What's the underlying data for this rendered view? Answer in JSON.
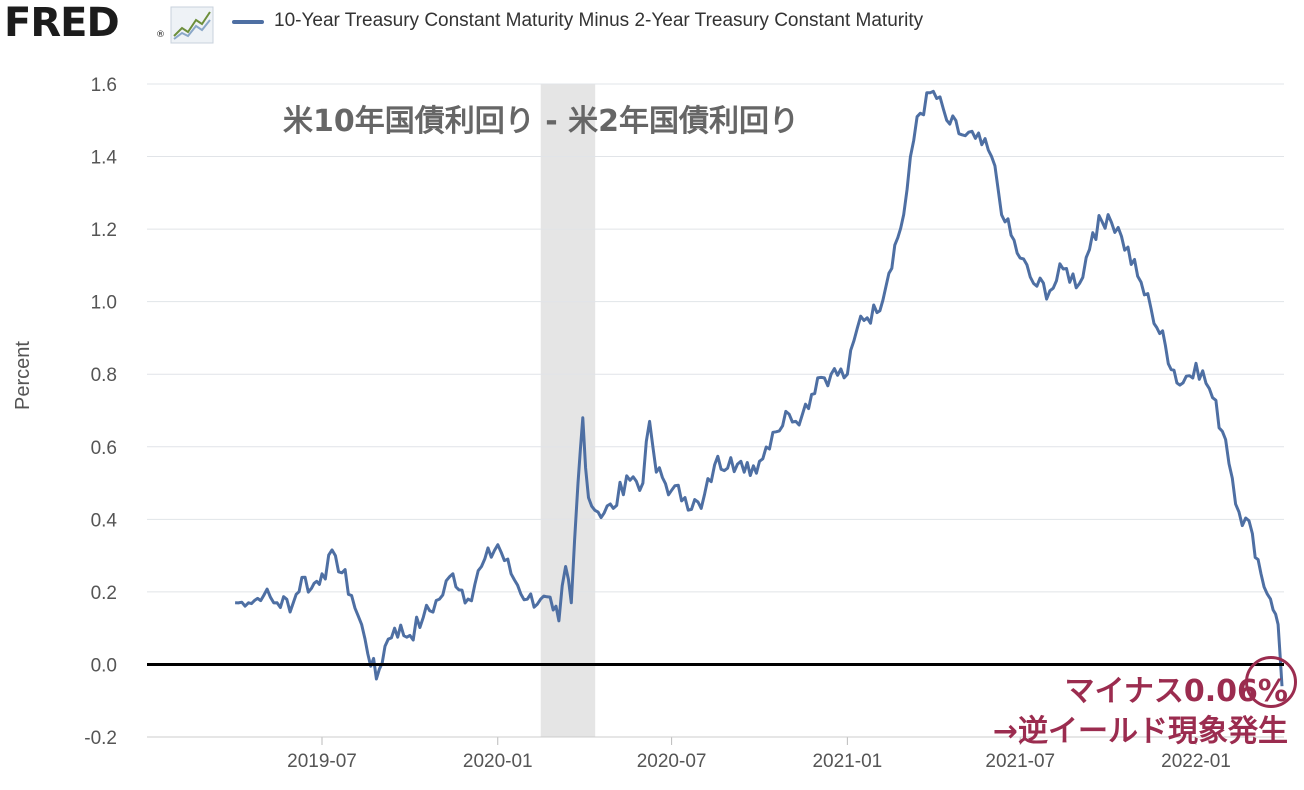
{
  "header": {
    "logo_text": "FRED",
    "logo_reg": "®",
    "legend_label": "10-Year Treasury Constant Maturity Minus 2-Year Treasury Constant Maturity",
    "series_color": "#4e6fa3",
    "logo_icon": "line-chart-icon"
  },
  "annotations": {
    "title_jp": "米10年国債利回り - 米2年国債利回り",
    "callout_line1": "マイナス0.06%",
    "callout_line2": "→逆イールド現象発生",
    "callout_color": "#9b2c4f"
  },
  "chart_data": {
    "type": "line",
    "ylabel": "Percent",
    "ylim": [
      -0.2,
      1.6
    ],
    "yticks": [
      "1.6",
      "1.4",
      "1.2",
      "1.0",
      "0.8",
      "0.6",
      "0.4",
      "0.2",
      "0.0",
      "-0.2"
    ],
    "xticks": [
      "2019-07",
      "2020-01",
      "2020-07",
      "2021-01",
      "2021-07",
      "2022-01"
    ],
    "recession_shading": {
      "start": "2020-02",
      "end": "2020-04",
      "color": "#e5e5e5"
    },
    "zero_line": true,
    "series": [
      {
        "name": "10-Year Treasury Constant Maturity Minus 2-Year Treasury Constant Maturity",
        "color": "#4e6fa3",
        "points": [
          [
            "2019-04-01",
            0.17
          ],
          [
            "2019-04-15",
            0.17
          ],
          [
            "2019-05-01",
            0.19
          ],
          [
            "2019-05-15",
            0.17
          ],
          [
            "2019-06-01",
            0.17
          ],
          [
            "2019-06-10",
            0.24
          ],
          [
            "2019-06-20",
            0.21
          ],
          [
            "2019-07-01",
            0.25
          ],
          [
            "2019-07-15",
            0.3
          ],
          [
            "2019-08-01",
            0.19
          ],
          [
            "2019-08-15",
            0.07
          ],
          [
            "2019-08-27",
            -0.04
          ],
          [
            "2019-09-05",
            0.05
          ],
          [
            "2019-09-15",
            0.1
          ],
          [
            "2019-10-01",
            0.08
          ],
          [
            "2019-10-15",
            0.13
          ],
          [
            "2019-11-01",
            0.18
          ],
          [
            "2019-11-15",
            0.25
          ],
          [
            "2019-12-01",
            0.18
          ],
          [
            "2019-12-15",
            0.27
          ],
          [
            "2020-01-01",
            0.33
          ],
          [
            "2020-01-15",
            0.25
          ],
          [
            "2020-02-01",
            0.18
          ],
          [
            "2020-02-15",
            0.18
          ],
          [
            "2020-02-28",
            0.15
          ],
          [
            "2020-03-05",
            0.12
          ],
          [
            "2020-03-12",
            0.27
          ],
          [
            "2020-03-18",
            0.17
          ],
          [
            "2020-03-25",
            0.5
          ],
          [
            "2020-03-30",
            0.68
          ],
          [
            "2020-04-05",
            0.46
          ],
          [
            "2020-04-15",
            0.42
          ],
          [
            "2020-05-01",
            0.43
          ],
          [
            "2020-05-15",
            0.52
          ],
          [
            "2020-06-01",
            0.5
          ],
          [
            "2020-06-08",
            0.67
          ],
          [
            "2020-06-15",
            0.53
          ],
          [
            "2020-07-01",
            0.48
          ],
          [
            "2020-07-15",
            0.46
          ],
          [
            "2020-08-01",
            0.43
          ],
          [
            "2020-08-15",
            0.55
          ],
          [
            "2020-09-01",
            0.57
          ],
          [
            "2020-09-15",
            0.53
          ],
          [
            "2020-10-01",
            0.56
          ],
          [
            "2020-10-15",
            0.64
          ],
          [
            "2020-11-01",
            0.69
          ],
          [
            "2020-11-15",
            0.69
          ],
          [
            "2020-12-01",
            0.79
          ],
          [
            "2020-12-15",
            0.8
          ],
          [
            "2021-01-01",
            0.8
          ],
          [
            "2021-01-15",
            0.96
          ],
          [
            "2021-02-01",
            0.97
          ],
          [
            "2021-02-15], 1.19",
            1.2
          ],
          [
            "2021-03-01",
            1.24
          ],
          [
            "2021-03-15",
            1.51
          ],
          [
            "2021-04-01",
            1.58
          ],
          [
            "2021-04-15",
            1.5
          ],
          [
            "2021-05-01",
            1.46
          ],
          [
            "2021-05-15",
            1.45
          ],
          [
            "2021-06-01",
            1.4
          ],
          [
            "2021-06-15",
            1.22
          ],
          [
            "2021-07-01",
            1.12
          ],
          [
            "2021-07-15",
            1.05
          ],
          [
            "2021-08-01",
            1.03
          ],
          [
            "2021-08-15",
            1.09
          ],
          [
            "2021-09-01",
            1.05
          ],
          [
            "2021-09-15",
            1.19
          ],
          [
            "2021-10-01",
            1.24
          ],
          [
            "2021-10-15",
            1.18
          ],
          [
            "2021-11-01",
            1.07
          ],
          [
            "2021-11-15",
            0.98
          ],
          [
            "2021-12-01], 0.76",
            0.76
          ],
          [
            "2021-12-15",
            0.77
          ],
          [
            "2022-01-01",
            0.83
          ],
          [
            "2022-01-15",
            0.76
          ],
          [
            "2022-02-01",
            0.62
          ],
          [
            "2022-02-15",
            0.42
          ],
          [
            "2022-03-01",
            0.36
          ],
          [
            "2022-03-10",
            0.25
          ],
          [
            "2022-03-20",
            0.18
          ],
          [
            "2022-03-28",
            0.11
          ],
          [
            "2022-04-01",
            -0.06
          ]
        ]
      }
    ]
  }
}
